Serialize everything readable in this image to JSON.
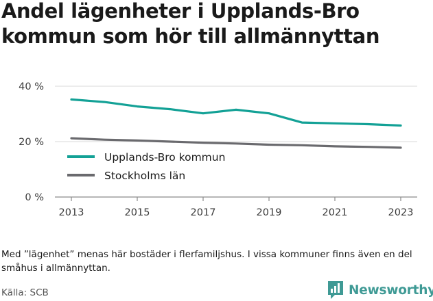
{
  "title": "Andel lägenheter i Upplands-Bro kommun som hör till allmännyttan",
  "note": "Med ”lägenhet” menas här bostäder i flerfamiljshus. I vissa kommuner finns även en del småhus i allmännyttan.",
  "source": "Källa: SCB",
  "brand": {
    "name": "Newsworthy",
    "icon": "newsworthy-logo-icon",
    "color": "#3f9a95"
  },
  "chart_data": {
    "type": "line",
    "title": "Andel lägenheter i Upplands-Bro kommun som hör till allmännyttan",
    "xlabel": "",
    "ylabel": "",
    "x": [
      2013,
      2014,
      2015,
      2016,
      2017,
      2018,
      2019,
      2020,
      2021,
      2022,
      2023
    ],
    "x_ticks": [
      2013,
      2015,
      2017,
      2019,
      2021,
      2023
    ],
    "x_tick_labels": [
      "2013",
      "2015",
      "2017",
      "2019",
      "2021",
      "2023"
    ],
    "y_ticks": [
      0,
      20,
      40
    ],
    "y_tick_labels": [
      "0 %",
      "20 %",
      "40 %"
    ],
    "ylim": [
      0,
      40
    ],
    "grid": true,
    "legend_position": "left",
    "series": [
      {
        "name": "Upplands-Bro kommun",
        "color": "#13a196",
        "values": [
          35.2,
          34.3,
          32.7,
          31.7,
          30.2,
          31.5,
          30.2,
          26.9,
          26.6,
          26.3,
          25.8
        ]
      },
      {
        "name": "Stockholms län",
        "color": "#6a6a6e",
        "values": [
          21.2,
          20.7,
          20.4,
          20.0,
          19.6,
          19.3,
          18.9,
          18.7,
          18.3,
          18.1,
          17.8
        ]
      }
    ]
  }
}
